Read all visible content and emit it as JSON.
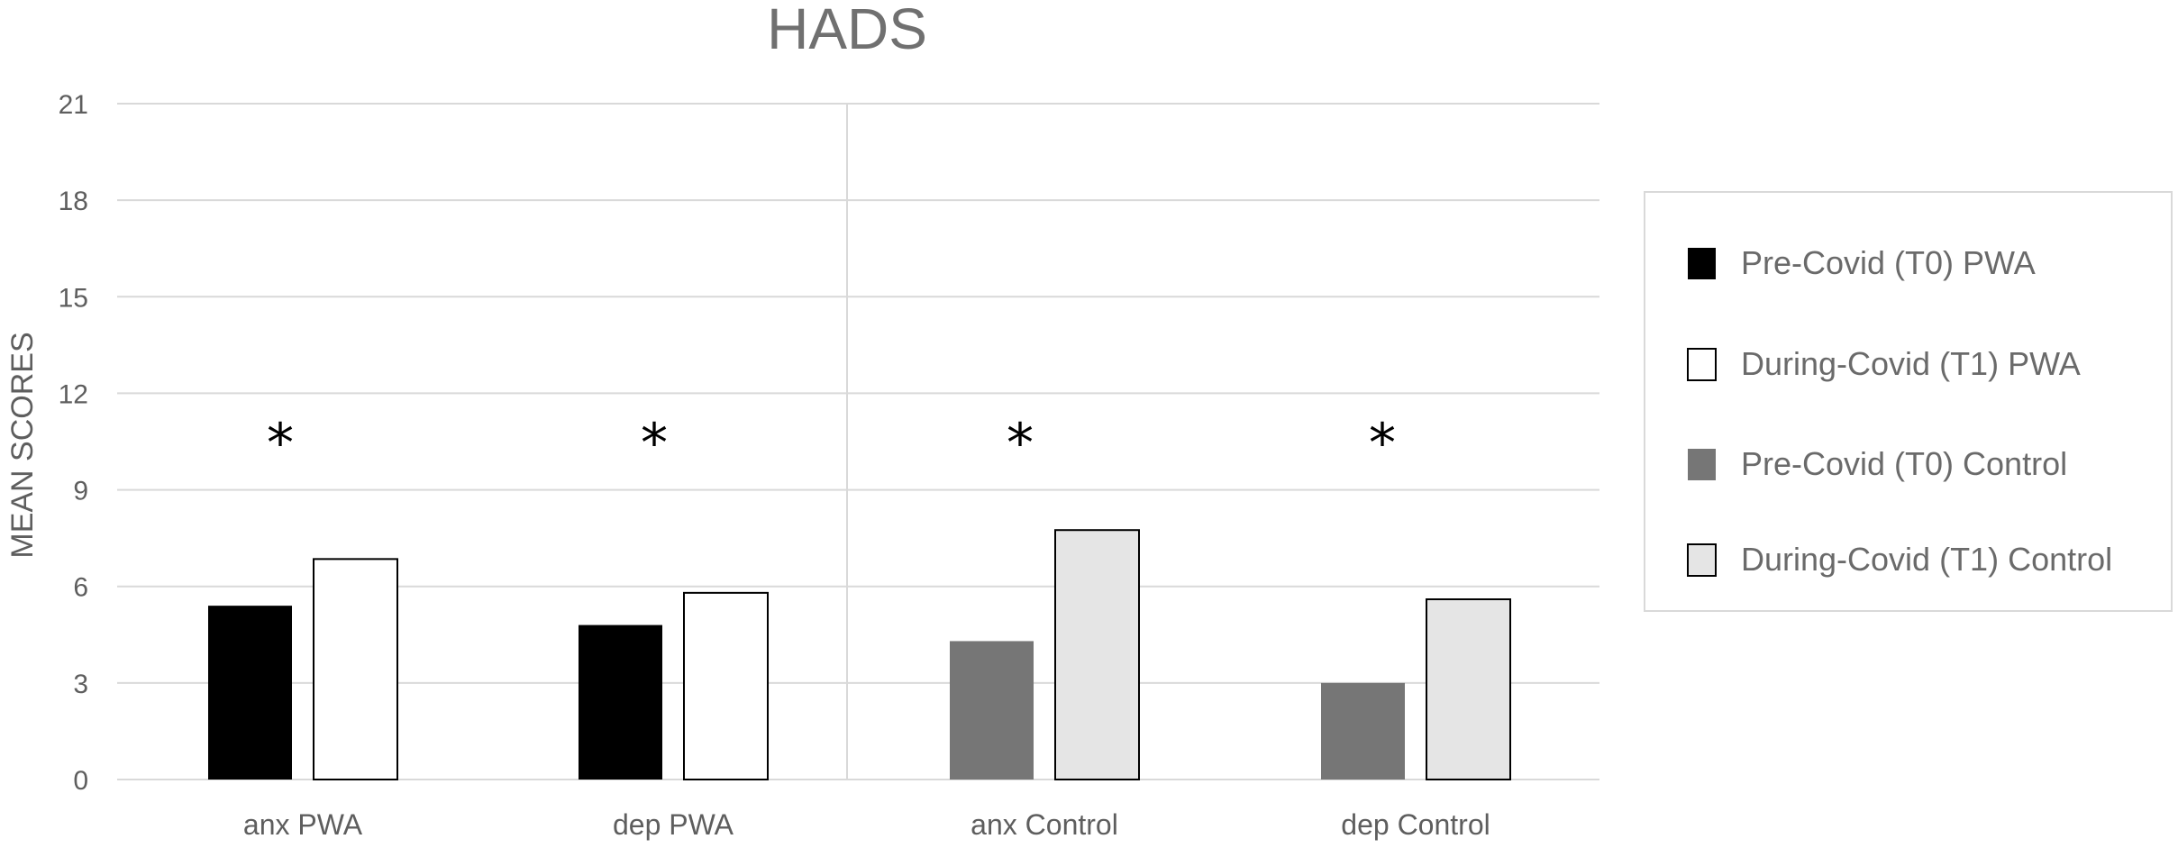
{
  "chart_data": {
    "type": "bar",
    "title": "HADS",
    "xlabel": "",
    "ylabel": "MEAN SCORES",
    "ylim": [
      0,
      21
    ],
    "yticks": [
      0,
      3,
      6,
      9,
      12,
      15,
      18,
      21
    ],
    "categories": [
      "anx PWA",
      "dep PWA",
      "anx Control",
      "dep Control"
    ],
    "bars": [
      {
        "category": "anx PWA",
        "series": "Pre-Covid (T0) PWA",
        "value": 5.4
      },
      {
        "category": "anx PWA",
        "series": "During-Covid (T1) PWA",
        "value": 6.85
      },
      {
        "category": "dep PWA",
        "series": "Pre-Covid (T0) PWA",
        "value": 4.8
      },
      {
        "category": "dep PWA",
        "series": "During-Covid (T1) PWA",
        "value": 5.8
      },
      {
        "category": "anx Control",
        "series": "Pre-Covid (T0) Control",
        "value": 4.3
      },
      {
        "category": "anx Control",
        "series": "During-Covid (T1) Control",
        "value": 7.75
      },
      {
        "category": "dep Control",
        "series": "Pre-Covid (T0) Control",
        "value": 3.0
      },
      {
        "category": "dep Control",
        "series": "During-Covid (T1) Control",
        "value": 5.6
      }
    ],
    "series": [
      {
        "name": "Pre-Covid (T0) PWA",
        "color": "#000000"
      },
      {
        "name": "During-Covid (T1) PWA",
        "color": "#ffffff"
      },
      {
        "name": "Pre-Covid (T0) Control",
        "color": "#767676"
      },
      {
        "name": "During-Covid (T1) Control",
        "color": "#e5e5e5"
      }
    ],
    "annotations": [
      "*",
      "*",
      "*",
      "*"
    ],
    "grid": true,
    "legend_position": "right"
  }
}
